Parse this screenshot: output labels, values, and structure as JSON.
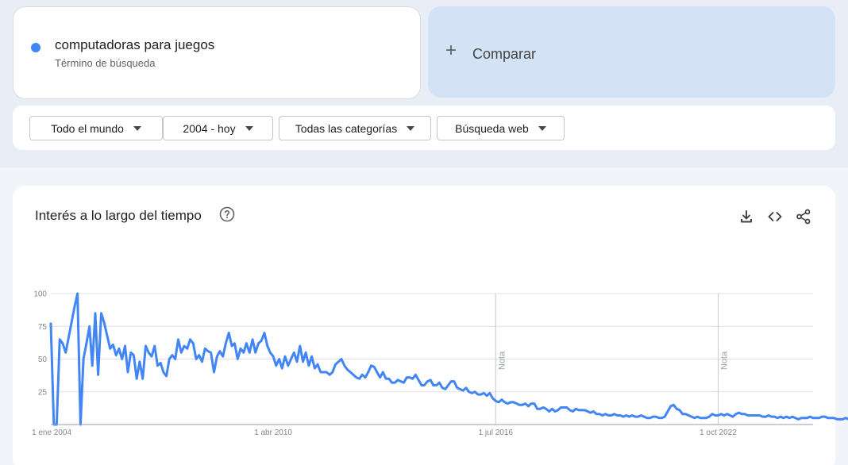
{
  "term": {
    "name": "computadoras para juegos",
    "subtitle": "Término de búsqueda",
    "color": "#4285f4"
  },
  "compare": {
    "plus": "+",
    "label": "Comparar"
  },
  "filters": {
    "region": "Todo el mundo",
    "period": "2004 - hoy",
    "category": "Todas las categorías",
    "search_type": "Búsqueda web"
  },
  "chart_card": {
    "title": "Interés a lo largo del tiempo"
  },
  "icons": {
    "help": "help-circle-icon",
    "download": "download-icon",
    "embed": "code-embed-icon",
    "share": "share-icon"
  },
  "chart_data": {
    "type": "line",
    "title": "",
    "xlabel": "",
    "ylabel": "",
    "ylim": [
      0,
      100
    ],
    "y_ticks": [
      "25",
      "50",
      "75",
      "100"
    ],
    "x_ticks": [
      "1 ene 2004",
      "1 abr 2010",
      "1 jul 2016",
      "1 oct 2022"
    ],
    "annotations": [
      {
        "text": "Nota",
        "date": "2016-07-01"
      },
      {
        "text": "Nota",
        "date": "2022-10-01"
      }
    ],
    "grid": true,
    "line_color": "#4285f4",
    "series": [
      {
        "start": "2004-01",
        "frequency": "monthly",
        "values": [
          77,
          0,
          0,
          65,
          62,
          55,
          66,
          78,
          90,
          100,
          0,
          50,
          62,
          75,
          45,
          85,
          38,
          85,
          78,
          68,
          58,
          61,
          53,
          58,
          50,
          60,
          40,
          55,
          53,
          35,
          48,
          35,
          60,
          55,
          52,
          60,
          45,
          47,
          40,
          37,
          50,
          53,
          50,
          65,
          55,
          60,
          58,
          65,
          62,
          50,
          53,
          48,
          58,
          56,
          55,
          40,
          52,
          56,
          52,
          62,
          70,
          60,
          62,
          50,
          58,
          55,
          62,
          55,
          65,
          55,
          62,
          64,
          70,
          60,
          55,
          52,
          45,
          50,
          43,
          52,
          45,
          50,
          55,
          48,
          60,
          48,
          55,
          45,
          52,
          43,
          46,
          40,
          40,
          40,
          38,
          40,
          46,
          48,
          50,
          45,
          42,
          40,
          38,
          36,
          35,
          38,
          36,
          40,
          45,
          44,
          40,
          36,
          40,
          35,
          35,
          32,
          32,
          34,
          33,
          32,
          36,
          36,
          35,
          38,
          34,
          30,
          30,
          33,
          34,
          30,
          30,
          32,
          28,
          27,
          30,
          33,
          33,
          28,
          27,
          26,
          28,
          25,
          24,
          25,
          23,
          23,
          24,
          22,
          24,
          20,
          18,
          17,
          19,
          17,
          16,
          17,
          17,
          16,
          15,
          15,
          16,
          14,
          16,
          16,
          12,
          12,
          13,
          12,
          10,
          12,
          10,
          11,
          13,
          13,
          13,
          11,
          10,
          12,
          11,
          11,
          11,
          10,
          9,
          10,
          8,
          8,
          7,
          8,
          7,
          7,
          8,
          7,
          7,
          6,
          7,
          6,
          7,
          6,
          6,
          7,
          6,
          5,
          5,
          6,
          6,
          5,
          5,
          6,
          10,
          14,
          15,
          12,
          11,
          8,
          8,
          7,
          6,
          5,
          6,
          5,
          5,
          5,
          6,
          8,
          7,
          7,
          8,
          7,
          8,
          7,
          6,
          8,
          9,
          8,
          8,
          7,
          7,
          7,
          7,
          7,
          6,
          6,
          7,
          6,
          6,
          5,
          6,
          5,
          6,
          5,
          6,
          5,
          4,
          5,
          5,
          5,
          6,
          5,
          5,
          5,
          6,
          6,
          5,
          5,
          5,
          4,
          4,
          4,
          5,
          4,
          4,
          5,
          5,
          4,
          4,
          4,
          4,
          5,
          3
        ]
      }
    ]
  }
}
